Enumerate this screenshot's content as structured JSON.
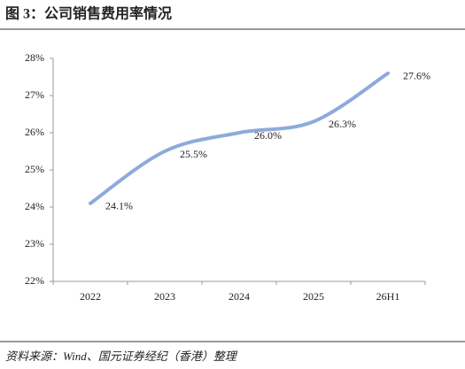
{
  "chart_data": {
    "type": "line",
    "title": "图 3：公司销售费用率情况",
    "source": "资料来源：Wind、国元证券经纪（香港）整理",
    "categories": [
      "2022",
      "2023",
      "2024",
      "2025",
      "26H1"
    ],
    "series": [
      {
        "color": "#8eaadb",
        "values": [
          24.1,
          25.5,
          26.0,
          26.3,
          27.6
        ],
        "value_labels": [
          "24.1%",
          "25.5%",
          "26.0%",
          "26.3%",
          "27.6%"
        ]
      }
    ],
    "ylim": [
      22,
      28
    ],
    "yticks": [
      {
        "value": 22,
        "label": "22%"
      },
      {
        "value": 23,
        "label": "23%"
      },
      {
        "value": 24,
        "label": "24%"
      },
      {
        "value": 25,
        "label": "25%"
      },
      {
        "value": 26,
        "label": "26%"
      },
      {
        "value": 27,
        "label": "27%"
      },
      {
        "value": 28,
        "label": "28%"
      }
    ],
    "smooth": true
  }
}
